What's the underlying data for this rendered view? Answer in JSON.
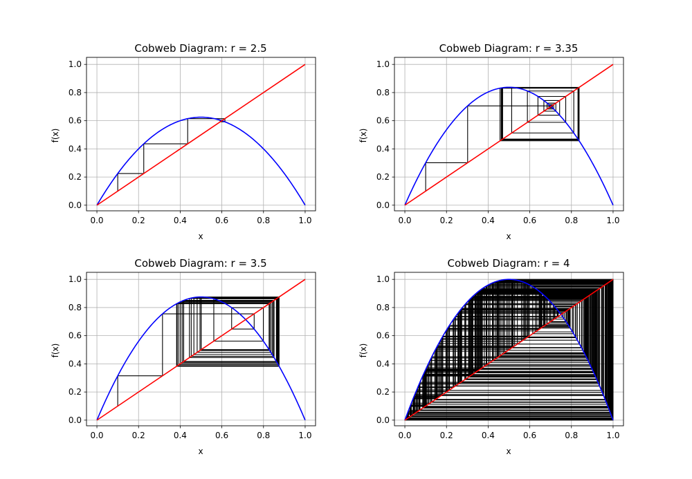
{
  "figure": {
    "background": "#ffffff",
    "grid_color": "#b0b0b0",
    "colors": {
      "map": "#0000ff",
      "identity": "#ff0000",
      "cobweb": "#000000"
    }
  },
  "chart_data": [
    {
      "type": "line",
      "title": "Cobweb Diagram: r = 2.5",
      "xlabel": "x",
      "ylabel": "f(x)",
      "r": 2.5,
      "x0": 0.1,
      "iterations": 30,
      "xlim": [
        -0.05,
        1.05
      ],
      "ylim": [
        -0.04,
        1.05
      ],
      "xticks": [
        "0.0",
        "0.2",
        "0.4",
        "0.6",
        "0.8",
        "1.0"
      ],
      "yticks": [
        "0.0",
        "0.2",
        "0.4",
        "0.6",
        "0.8",
        "1.0"
      ],
      "grid": true,
      "series": [
        {
          "role": "map",
          "function": "r*x*(1-x)",
          "color": "#0000ff"
        },
        {
          "role": "identity",
          "function": "x",
          "color": "#ff0000"
        },
        {
          "role": "cobweb",
          "color": "#000000"
        }
      ]
    },
    {
      "type": "line",
      "title": "Cobweb Diagram: r = 3.35",
      "xlabel": "x",
      "ylabel": "f(x)",
      "r": 3.35,
      "x0": 0.1,
      "iterations": 100,
      "xlim": [
        -0.05,
        1.05
      ],
      "ylim": [
        -0.04,
        1.05
      ],
      "xticks": [
        "0.0",
        "0.2",
        "0.4",
        "0.6",
        "0.8",
        "1.0"
      ],
      "yticks": [
        "0.0",
        "0.2",
        "0.4",
        "0.6",
        "0.8",
        "1.0"
      ],
      "grid": true,
      "series": [
        {
          "role": "map",
          "function": "r*x*(1-x)",
          "color": "#0000ff"
        },
        {
          "role": "identity",
          "function": "x",
          "color": "#ff0000"
        },
        {
          "role": "cobweb",
          "color": "#000000"
        }
      ]
    },
    {
      "type": "line",
      "title": "Cobweb Diagram: r = 3.5",
      "xlabel": "x",
      "ylabel": "f(x)",
      "r": 3.5,
      "x0": 0.1,
      "iterations": 100,
      "xlim": [
        -0.05,
        1.05
      ],
      "ylim": [
        -0.04,
        1.05
      ],
      "xticks": [
        "0.0",
        "0.2",
        "0.4",
        "0.6",
        "0.8",
        "1.0"
      ],
      "yticks": [
        "0.0",
        "0.2",
        "0.4",
        "0.6",
        "0.8",
        "1.0"
      ],
      "grid": true,
      "series": [
        {
          "role": "map",
          "function": "r*x*(1-x)",
          "color": "#0000ff"
        },
        {
          "role": "identity",
          "function": "x",
          "color": "#ff0000"
        },
        {
          "role": "cobweb",
          "color": "#000000"
        }
      ]
    },
    {
      "type": "line",
      "title": "Cobweb Diagram: r = 4",
      "xlabel": "x",
      "ylabel": "f(x)",
      "r": 4,
      "x0": 0.1,
      "iterations": 300,
      "xlim": [
        -0.05,
        1.05
      ],
      "ylim": [
        -0.04,
        1.05
      ],
      "xticks": [
        "0.0",
        "0.2",
        "0.4",
        "0.6",
        "0.8",
        "1.0"
      ],
      "yticks": [
        "0.0",
        "0.2",
        "0.4",
        "0.6",
        "0.8",
        "1.0"
      ],
      "grid": true,
      "series": [
        {
          "role": "map",
          "function": "r*x*(1-x)",
          "color": "#0000ff"
        },
        {
          "role": "identity",
          "function": "x",
          "color": "#ff0000"
        },
        {
          "role": "cobweb",
          "color": "#000000"
        }
      ]
    }
  ]
}
